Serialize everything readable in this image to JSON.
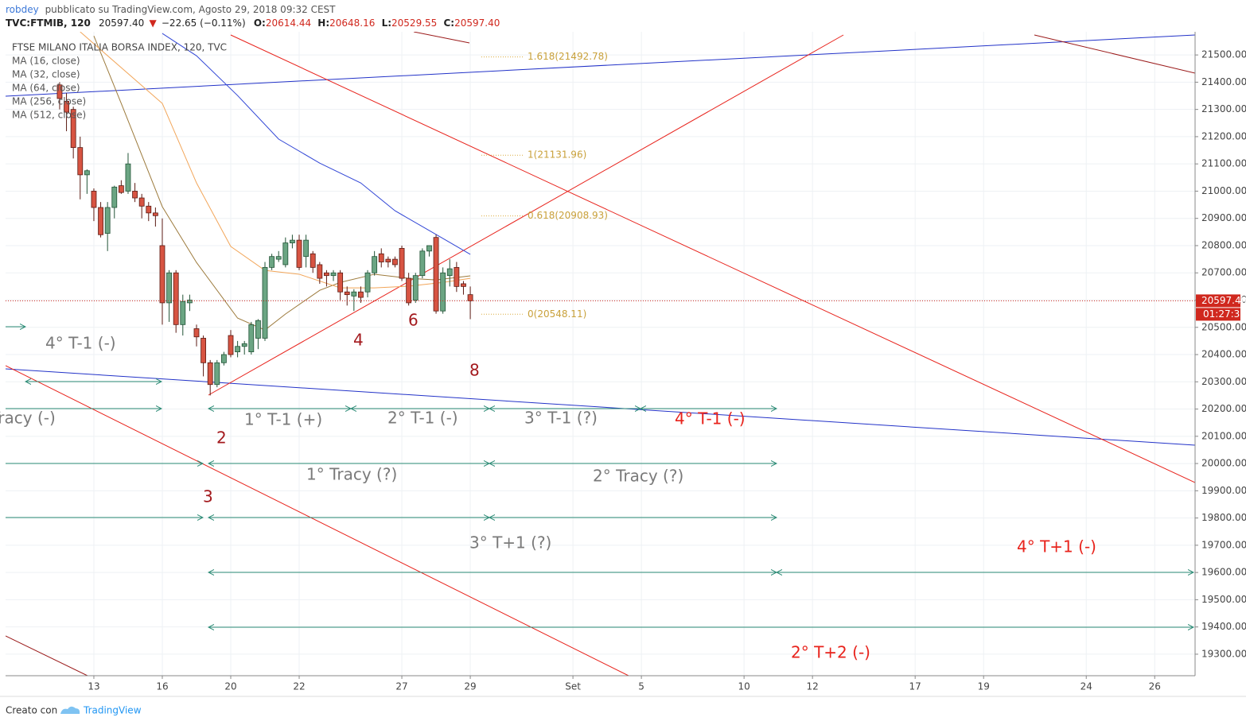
{
  "header": {
    "author": "robdey",
    "published": "pubblicato su TradingView.com, Agosto 29, 2018 09:32 CEST",
    "symbol": "TVC:FTMIB, 120",
    "price": "20597.40",
    "change_arrow": "▼",
    "change": "−22.65 (−0.11%)",
    "o_label": "O:",
    "o": "20614.44",
    "h_label": "H:",
    "h": "20648.16",
    "l_label": "L:",
    "l": "20529.55",
    "c_label": "C:",
    "c": "20597.40"
  },
  "chart_data": {
    "type": "candlestick",
    "title": "FTSE MILANO ITALIA BORSA INDEX, 120, TVC",
    "up_color": "#6ba583",
    "down_color": "#d75442",
    "open": [
      21390,
      21330,
      21300,
      21160,
      21060,
      21000,
      20940,
      20845,
      20940,
      21020,
      21000,
      21000,
      20975,
      20945,
      20920,
      20800,
      20590,
      20700,
      20510,
      20590,
      20495,
      20460,
      20370,
      20290,
      20370,
      20470,
      20410,
      20430,
      20410,
      20460,
      20460,
      20720,
      20750,
      20730,
      20810,
      20820,
      20760,
      20770,
      20730,
      20700,
      20690,
      20700,
      20630,
      20615,
      20630,
      20630,
      20700,
      20770,
      20750,
      20750,
      20790,
      20680,
      20600,
      20690,
      20780,
      20830,
      20560,
      20690,
      20720,
      20660,
      20620
    ],
    "high": [
      21400,
      21360,
      21310,
      21200,
      21080,
      21010,
      20960,
      20960,
      21020,
      21040,
      21140,
      21030,
      20990,
      20960,
      20940,
      20900,
      20710,
      20710,
      20620,
      20620,
      20510,
      20470,
      20380,
      20380,
      20410,
      20490,
      20450,
      20450,
      20520,
      20530,
      20740,
      20770,
      20780,
      20830,
      20840,
      20840,
      20840,
      20780,
      20740,
      20710,
      20710,
      20710,
      20650,
      20640,
      20650,
      20710,
      20780,
      20790,
      20760,
      20760,
      20800,
      20700,
      20700,
      20790,
      20800,
      20840,
      20720,
      20750,
      20740,
      20670,
      20650
    ],
    "low": [
      21300,
      21220,
      21120,
      20970,
      20990,
      20890,
      20830,
      20780,
      20900,
      20990,
      20990,
      20960,
      20900,
      20890,
      20870,
      20510,
      20520,
      20480,
      20470,
      20560,
      20430,
      20320,
      20250,
      20280,
      20360,
      20390,
      20390,
      20400,
      20400,
      20420,
      20450,
      20710,
      20740,
      20720,
      20790,
      20710,
      20720,
      20700,
      20660,
      20650,
      20670,
      20600,
      20580,
      20560,
      20590,
      20610,
      20690,
      20720,
      20720,
      20720,
      20670,
      20580,
      20590,
      20680,
      20760,
      20550,
      20550,
      20650,
      20630,
      20620,
      20530
    ],
    "close": [
      21340,
      21290,
      21160,
      21060,
      21075,
      20940,
      20840,
      20940,
      21015,
      20995,
      21100,
      20975,
      20945,
      20920,
      20910,
      20590,
      20700,
      20510,
      20595,
      20600,
      20465,
      20370,
      20290,
      20370,
      20400,
      20400,
      20430,
      20440,
      20510,
      20525,
      20720,
      20760,
      20760,
      20810,
      20820,
      20720,
      20820,
      20720,
      20680,
      20690,
      20700,
      20630,
      20620,
      20630,
      20610,
      20700,
      20760,
      20740,
      20740,
      20730,
      20680,
      20590,
      20690,
      20780,
      20800,
      20560,
      20700,
      20715,
      20650,
      20650,
      20597.4
    ],
    "series": [
      {
        "name": "MA (16, close)",
        "color": "#9c7a3c",
        "x": [
          5,
          9,
          15,
          20,
          26,
          30,
          33,
          38,
          41,
          46,
          51,
          55,
          60
        ],
        "values": [
          21570,
          21322,
          20943,
          20738,
          20534,
          20490,
          20549,
          20636,
          20665,
          20695,
          20680,
          20674,
          20689
        ]
      },
      {
        "name": "MA (32, close)",
        "color": "#f2a65a",
        "x": [
          3,
          15,
          20,
          25,
          30,
          35,
          41,
          46,
          51,
          56,
          60
        ],
        "values": [
          21585,
          21322,
          21030,
          20797,
          20709,
          20695,
          20645,
          20645,
          20651,
          20665,
          20680
        ]
      },
      {
        "name": "MA (64, close)",
        "color": "#3146d6",
        "x": [
          15,
          20,
          26,
          32,
          38,
          44,
          49,
          55,
          60
        ],
        "values": [
          21579,
          21497,
          21351,
          21191,
          21103,
          21030,
          20928,
          20841,
          20768
        ]
      },
      {
        "name": "MA (256, close)",
        "color": "#8e44ad",
        "x": [],
        "values": []
      },
      {
        "name": "MA (512, close)",
        "color": "#2c3e50",
        "x": [],
        "values": []
      }
    ],
    "xlim": [
      -7.9,
      165.9
    ],
    "xticks": [
      {
        "value": 5,
        "label": "13"
      },
      {
        "value": 15,
        "label": "16"
      },
      {
        "value": 25,
        "label": "20"
      },
      {
        "value": 35,
        "label": "22"
      },
      {
        "value": 50,
        "label": "27"
      },
      {
        "value": 60,
        "label": "29"
      },
      {
        "value": 75,
        "label": "Set"
      },
      {
        "value": 85,
        "label": "5"
      },
      {
        "value": 100,
        "label": "10"
      },
      {
        "value": 110,
        "label": "12"
      },
      {
        "value": 125,
        "label": "17"
      },
      {
        "value": 135,
        "label": "19"
      },
      {
        "value": 150,
        "label": "24"
      },
      {
        "value": 160,
        "label": "26"
      }
    ],
    "ylim": [
      19221,
      21585
    ],
    "yticks": [
      {
        "value": 19300,
        "label": "19300.00"
      },
      {
        "value": 19400,
        "label": "19400.00"
      },
      {
        "value": 19500,
        "label": "19500.00"
      },
      {
        "value": 19600,
        "label": "19600.00"
      },
      {
        "value": 19700,
        "label": "19700.00"
      },
      {
        "value": 19800,
        "label": "19800.00"
      },
      {
        "value": 19900,
        "label": "19900.00"
      },
      {
        "value": 20000,
        "label": "20000.00"
      },
      {
        "value": 20100,
        "label": "20100.00"
      },
      {
        "value": 20200,
        "label": "20200.00"
      },
      {
        "value": 20300,
        "label": "20300.00"
      },
      {
        "value": 20400,
        "label": "20400.00"
      },
      {
        "value": 20500,
        "label": "20500.00"
      },
      {
        "value": 20600,
        "label": "20600.00"
      },
      {
        "value": 20700,
        "label": "20700.00"
      },
      {
        "value": 20800,
        "label": "20800.00"
      },
      {
        "value": 20900,
        "label": "20900.00"
      },
      {
        "value": 21000,
        "label": "21000.00"
      },
      {
        "value": 21100,
        "label": "21100.00"
      },
      {
        "value": 21200,
        "label": "21200.00"
      },
      {
        "value": 21300,
        "label": "21300.00"
      },
      {
        "value": 21400,
        "label": "21400.00"
      },
      {
        "value": 21500,
        "label": "21500.00"
      }
    ],
    "grid": true,
    "last_price": {
      "value": 20597.4,
      "label": "20597.40"
    },
    "countdown": "01:27:35",
    "fib_levels": [
      {
        "value": 21492.78,
        "label": "1.618(21492.78)"
      },
      {
        "value": 21131.96,
        "label": "1(21131.96)"
      },
      {
        "value": 20908.93,
        "label": "0.618(20908.93)"
      },
      {
        "value": 20548.11,
        "label": "0(20548.11)"
      }
    ],
    "annotations": [
      "4° T-1 (-)",
      "Tracy (-)",
      "1° T-1 (+)",
      "2° T-1 (-)",
      "3° T-1 (?)",
      "4° T-1 (-)",
      "1° Tracy (?)",
      "2° Tracy (?)",
      "3° T+1 (?)",
      "4° T+1 (-)",
      "2° T+2 (-)"
    ],
    "wave_labels": [
      "2",
      "3",
      "4",
      "6",
      "8"
    ]
  },
  "footer": {
    "created_with": "Creato con",
    "brand": "TradingView"
  }
}
